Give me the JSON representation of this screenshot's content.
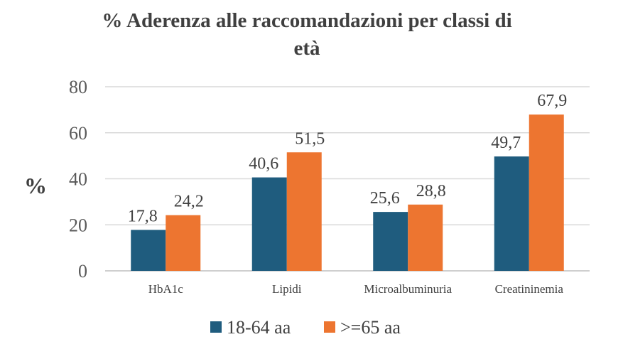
{
  "chart_data": {
    "type": "bar",
    "title_line1": "% Aderenza alle raccomandazioni per classi di",
    "title_line2": "età",
    "ylabel": "%",
    "xlabel": "",
    "categories": [
      "HbA1c",
      "Lipidi",
      "Microalbuminuria",
      "Creatininemia"
    ],
    "series": [
      {
        "name": "18-64 aa",
        "color": "#1f5c7e",
        "values": [
          17.8,
          40.6,
          25.6,
          49.7
        ],
        "labels": [
          "17,8",
          "40,6",
          "25,6",
          "49,7"
        ]
      },
      {
        "name": ">=65 aa",
        "color": "#ed7530",
        "values": [
          24.2,
          51.5,
          28.8,
          67.9
        ],
        "labels": [
          "24,2",
          "51,5",
          "28,8",
          "67,9"
        ]
      }
    ],
    "ylim": [
      0,
      80
    ],
    "yticks": [
      "0",
      "20",
      "40",
      "60",
      "80"
    ],
    "grid": true,
    "legend_position": "bottom"
  }
}
